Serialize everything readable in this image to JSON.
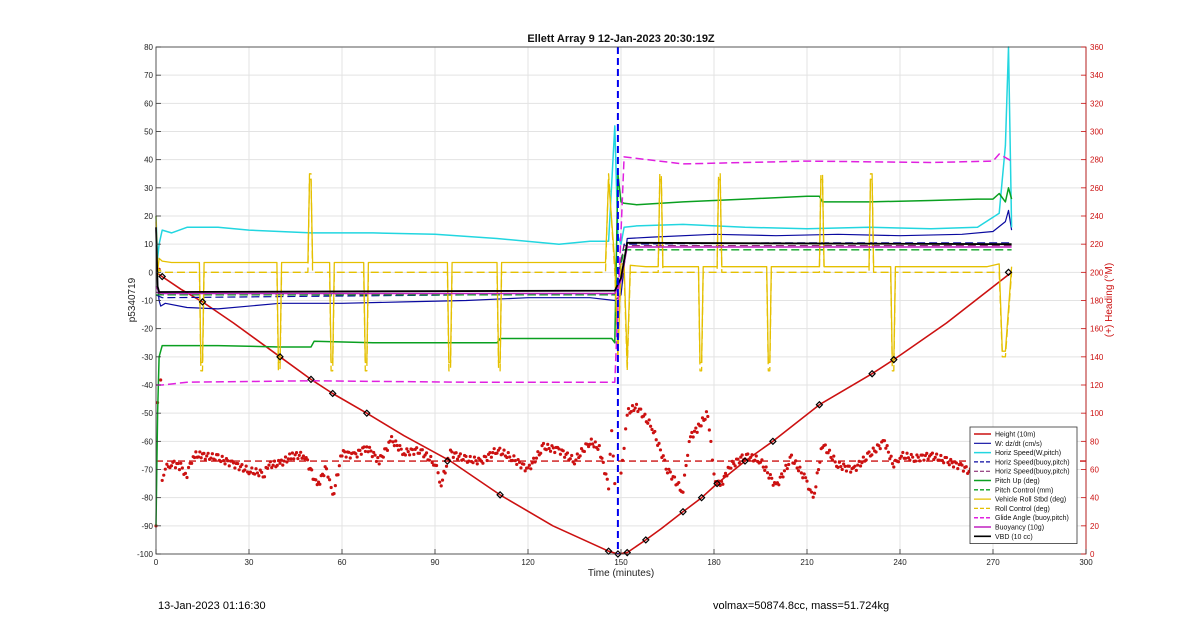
{
  "chart_data": {
    "type": "line",
    "title": "Ellett Array 9 12-Jan-2023 20:30:19Z",
    "xlabel": "Time (minutes)",
    "ylabel_left": "p5340719",
    "ylabel_right": "(+) Heading (°M)",
    "xlim": [
      0,
      300
    ],
    "ylim_left": [
      -100,
      80
    ],
    "ylim_right": [
      0,
      360
    ],
    "x_ticks": [
      0,
      30,
      60,
      90,
      120,
      150,
      180,
      210,
      240,
      270,
      300
    ],
    "y_ticks_left": [
      -100,
      -90,
      -80,
      -70,
      -60,
      -50,
      -40,
      -30,
      -20,
      -10,
      0,
      10,
      20,
      30,
      40,
      50,
      60,
      70,
      80
    ],
    "y_ticks_right": [
      0,
      20,
      40,
      60,
      80,
      100,
      120,
      140,
      160,
      180,
      200,
      220,
      240,
      260,
      280,
      300,
      320,
      340,
      360
    ],
    "x_tick_labels": [
      "0",
      "30",
      "60",
      "90",
      "120",
      "150",
      "180",
      "210",
      "240",
      "270",
      "300"
    ],
    "y_tick_labels_left": [
      "-100",
      "-90",
      "-80",
      "-70",
      "-60",
      "-50",
      "-40",
      "-30",
      "-20",
      "-10",
      "0",
      "10",
      "20",
      "30",
      "40",
      "50",
      "60",
      "70",
      "80"
    ],
    "y_tick_labels_right": [
      "0",
      "20",
      "40",
      "60",
      "80",
      "100",
      "120",
      "140",
      "160",
      "180",
      "200",
      "220",
      "240",
      "260",
      "280",
      "300",
      "320",
      "340",
      "360"
    ],
    "grid": true,
    "legend_position": "bottom-right",
    "apogee_marker_x": 149,
    "series": [
      {
        "name": "Height (10m)",
        "color": "#cc1111",
        "style": "solid",
        "width": 1.6,
        "x": [
          0,
          2,
          8,
          15,
          25,
          40,
          50,
          57,
          68,
          80,
          95,
          111,
          128,
          146,
          149,
          152,
          158,
          163,
          170,
          176,
          181,
          190,
          199,
          214,
          231,
          238,
          255,
          276
        ],
        "y": [
          0,
          -1.5,
          -6,
          -10.5,
          -18,
          -30,
          -38,
          -43,
          -50,
          -58,
          -67,
          -79,
          -90,
          -99,
          -100,
          -99.5,
          -95,
          -91,
          -85,
          -80,
          -75,
          -67,
          -60,
          -47,
          -36,
          -31,
          -18,
          0
        ]
      },
      {
        "name": "W: dz/dt (cm/s)",
        "color": "#0a0aa0",
        "style": "solid",
        "width": 1.2,
        "x": [
          0,
          0.5,
          1,
          1.5,
          3,
          10,
          20,
          40,
          60,
          80,
          100,
          120,
          140,
          148,
          150,
          151,
          152,
          160,
          180,
          200,
          220,
          240,
          260,
          270,
          274,
          275,
          276
        ],
        "y": [
          15,
          -5,
          -10,
          -12,
          -11,
          -12.5,
          -13,
          -11,
          -11,
          -10.5,
          -10,
          -9,
          -9,
          -10,
          -8,
          2,
          12,
          12.5,
          13.5,
          13,
          13.5,
          13,
          13.5,
          14.5,
          18,
          22,
          15
        ]
      },
      {
        "name": "Horiz Speed(W,pitch)",
        "color": "#22d6e0",
        "style": "solid",
        "width": 1.5,
        "x": [
          0,
          0.5,
          1,
          2,
          5,
          10,
          20,
          30,
          50,
          70,
          90,
          110,
          130,
          140,
          146,
          148,
          149,
          150,
          151,
          155,
          170,
          190,
          210,
          230,
          250,
          265,
          272,
          274,
          275,
          276
        ],
        "y": [
          20,
          5,
          10,
          15,
          14,
          16,
          16,
          15,
          14,
          14,
          13.5,
          12,
          10,
          11,
          11,
          52,
          13,
          10,
          16,
          16.5,
          17,
          16,
          15.5,
          16,
          15.5,
          16,
          21,
          45,
          80,
          16
        ]
      },
      {
        "name": "Horiz Speed(buoy,pitch)",
        "color": "#0a0aa0",
        "style": "dashed",
        "width": 1.2,
        "x": [
          0,
          2,
          50,
          100,
          148,
          151,
          200,
          276
        ],
        "y": [
          -8,
          -9,
          -8.5,
          -8,
          -8,
          10,
          10.5,
          10.5
        ]
      },
      {
        "name": "Horiz Speed(buoy,pitch)",
        "color": "#7a1060",
        "style": "dashed",
        "width": 1.0,
        "x": [
          0,
          2,
          50,
          100,
          148,
          151,
          200,
          276
        ],
        "y": [
          -7,
          -8,
          -8,
          -7.5,
          -7.5,
          9.5,
          9.5,
          9.5
        ]
      },
      {
        "name": "Pitch Up (deg)",
        "color": "#0aa020",
        "style": "solid",
        "width": 1.5,
        "x": [
          0,
          0.5,
          1,
          2,
          3,
          10,
          20,
          40,
          50,
          51,
          70,
          90,
          110,
          111,
          130,
          147,
          148,
          149,
          150,
          151,
          155,
          170,
          180,
          190,
          210,
          214,
          215,
          230,
          250,
          265,
          270,
          272,
          274,
          275,
          276
        ],
        "y": [
          -90,
          -50,
          -30,
          -26,
          -26,
          -26,
          -26,
          -26.5,
          -26.5,
          -24.5,
          -25,
          -25,
          -25,
          -23.5,
          -23.5,
          -23.5,
          -25,
          35,
          25,
          24.5,
          24,
          25,
          25.5,
          26,
          27,
          27,
          25,
          25,
          25.5,
          26,
          26,
          28,
          25,
          30,
          26
        ]
      },
      {
        "name": "Pitch Control (mm)",
        "color": "#0aa020",
        "style": "dashed",
        "width": 1.3,
        "x": [
          0,
          2,
          148,
          151,
          276
        ],
        "y": [
          -8,
          -8,
          -8,
          8,
          8
        ]
      },
      {
        "name": "Vehicle Roll Stbd (deg)",
        "color": "#e5c000",
        "style": "solid",
        "width": 1.3,
        "x": [
          0,
          0.5,
          1,
          2,
          5,
          14,
          14.5,
          15,
          15.5,
          39,
          39.5,
          40,
          40.5,
          49,
          49.5,
          50,
          50.5,
          56,
          56.5,
          57,
          57.5,
          67,
          67.5,
          68,
          68.5,
          94,
          94.5,
          95,
          95.5,
          110,
          110.5,
          111,
          111.5,
          145,
          146,
          148,
          149,
          150,
          151,
          152,
          153,
          158,
          162,
          162.5,
          163,
          163.5,
          175,
          175.5,
          176,
          176.5,
          181,
          181.5,
          182,
          182.5,
          197,
          197.5,
          198,
          198.5,
          214,
          214.5,
          215,
          215.5,
          230,
          230.5,
          231,
          231.5,
          237,
          237.5,
          238,
          238.5,
          265,
          268,
          272,
          273,
          274,
          276
        ],
        "y": [
          20,
          0,
          5,
          4,
          3.5,
          3.5,
          -32,
          -32,
          3.5,
          3.5,
          -32,
          -32,
          3.5,
          3.5,
          33,
          33,
          3.5,
          3.5,
          -32,
          -32,
          3.5,
          3.5,
          -32,
          -32,
          3.5,
          3.5,
          -32,
          -32,
          3.5,
          3.5,
          -32,
          -32,
          3.5,
          3.5,
          33,
          3.5,
          -30,
          3,
          3,
          -32,
          2.5,
          2,
          2,
          33,
          33,
          2,
          2,
          -32,
          -32,
          2,
          2,
          33,
          33,
          2,
          2,
          -32,
          -32,
          2,
          2,
          33,
          33,
          2,
          2,
          33,
          33,
          2,
          2,
          -32,
          -32,
          2,
          2,
          2,
          3,
          -28,
          -28,
          2
        ]
      },
      {
        "name": "Roll Control (deg)",
        "color": "#e5c000",
        "style": "dashed",
        "width": 1.3,
        "x": [
          0,
          0.5,
          1,
          2,
          5,
          14,
          14.5,
          15,
          15.5,
          39,
          39.5,
          40,
          40.5,
          49,
          49.5,
          50,
          50.5,
          56,
          56.5,
          57,
          57.5,
          67,
          67.5,
          68,
          68.5,
          94,
          94.5,
          95,
          95.5,
          110,
          110.5,
          111,
          111.5,
          145,
          146,
          148,
          149,
          150,
          151,
          152,
          153,
          158,
          162,
          162.5,
          163,
          163.5,
          175,
          175.5,
          176,
          176.5,
          181,
          181.5,
          182,
          182.5,
          197,
          197.5,
          198,
          198.5,
          214,
          214.5,
          215,
          215.5,
          230,
          230.5,
          231,
          231.5,
          237,
          237.5,
          238,
          238.5,
          265,
          268,
          272,
          273,
          274,
          276
        ],
        "y": [
          18,
          -2,
          1,
          0,
          0,
          0,
          -35,
          -35,
          0,
          0,
          -35,
          -35,
          0,
          0,
          35,
          35,
          0,
          0,
          -35,
          -35,
          0,
          0,
          -35,
          -35,
          0,
          0,
          -35,
          -35,
          0,
          0,
          -35,
          -35,
          0,
          0,
          35,
          0,
          -30,
          0,
          0,
          -35,
          0,
          0,
          0,
          35,
          35,
          0,
          0,
          -35,
          -35,
          0,
          0,
          35,
          35,
          0,
          0,
          -35,
          -35,
          0,
          0,
          35,
          35,
          0,
          0,
          35,
          35,
          0,
          0,
          -35,
          -35,
          0,
          0,
          0,
          0,
          -30,
          -30,
          0
        ]
      },
      {
        "name": "Glide Angle (buoy,pitch)",
        "color": "#e020e0",
        "style": "dashed",
        "width": 1.5,
        "x": [
          0,
          2,
          10,
          50,
          100,
          148,
          151,
          170,
          210,
          250,
          270,
          272,
          276
        ],
        "y": [
          -40,
          -40,
          -39,
          -38.5,
          -39,
          -39,
          41,
          38.5,
          39.5,
          39,
          39.5,
          42,
          39.5
        ]
      },
      {
        "name": "Buoyancy (10g)",
        "color": "#c020c0",
        "style": "solid",
        "width": 1.5,
        "x": [
          0,
          1,
          2,
          148,
          150,
          152,
          276
        ],
        "y": [
          -5,
          -7,
          -7.5,
          -7.5,
          -3,
          9,
          9
        ]
      },
      {
        "name": "VBD (10 cc)",
        "color": "#000000",
        "style": "solid",
        "width": 1.8,
        "x": [
          0,
          0.5,
          1,
          2,
          148,
          150,
          152,
          276
        ],
        "y": [
          16,
          -5,
          -7,
          -7,
          -6.5,
          -2,
          10.5,
          10
        ]
      }
    ],
    "height_markers": {
      "x": [
        2,
        15,
        40,
        50,
        57,
        68,
        94,
        111,
        146,
        149,
        152,
        158,
        170,
        176,
        181,
        190,
        199,
        214,
        231,
        238,
        275
      ],
      "y": [
        -1.5,
        -10.5,
        -30,
        -38,
        -43,
        -50,
        -67,
        -79,
        -99,
        -100,
        -99.5,
        -95,
        -85,
        -80,
        -75,
        -67,
        -60,
        -47,
        -36,
        -31,
        0
      ]
    },
    "heading_series": {
      "name": "(+) Heading (°M)",
      "color": "#cc1111",
      "mean_heading": 66,
      "segments": [
        {
          "x": [
            0,
            1,
            2,
            3,
            5,
            8,
            10,
            12,
            15,
            20,
            25,
            30,
            35,
            36,
            40,
            44,
            48,
            52,
            55,
            57,
            60,
            64,
            68,
            72,
            76,
            80,
            85,
            90,
            92,
            95,
            100,
            105,
            110,
            115,
            120,
            125,
            130,
            135,
            140,
            143,
            146,
            147,
            148
          ],
          "y": [
            20,
            200,
            50,
            60,
            65,
            62,
            56,
            70,
            70,
            68,
            64,
            59,
            57,
            63,
            64,
            70,
            70,
            48,
            62,
            40,
            72,
            70,
            76,
            66,
            81,
            72,
            74,
            64,
            50,
            72,
            67,
            66,
            74,
            68,
            60,
            76,
            74,
            66,
            80,
            75,
            48,
            90,
            50
          ]
        },
        {
          "x": [
            150,
            152,
            155,
            160,
            165,
            170,
            172,
            175,
            178,
            180,
            182,
            185,
            190,
            195,
            200,
            205,
            210,
            212,
            215,
            220,
            225,
            230,
            235,
            238,
            240,
            245,
            250,
            255,
            260,
            265,
            270,
            274,
            276
          ],
          "y": [
            55,
            100,
            105,
            90,
            60,
            44,
            82,
            90,
            100,
            55,
            48,
            62,
            70,
            66,
            48,
            68,
            52,
            38,
            78,
            63,
            60,
            70,
            80,
            62,
            70,
            68,
            70,
            66,
            62,
            55,
            52,
            56,
            50
          ]
        }
      ]
    }
  },
  "footer": {
    "left": "13-Jan-2023 01:16:30",
    "right": "volmax=50874.8cc, mass=51.724kg"
  }
}
